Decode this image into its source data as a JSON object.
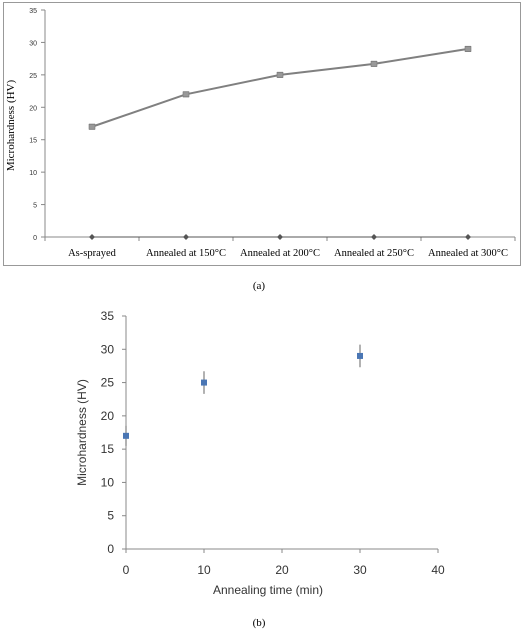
{
  "chart_data": [
    {
      "type": "line",
      "categories": [
        "As-sprayed",
        "Annealed at 150°C",
        "Annealed at 200°C",
        "Annealed at 250°C",
        "Annealed at 300°C"
      ],
      "series": [
        {
          "values": [
            17,
            22,
            25,
            26.7,
            29
          ],
          "color": "#808080"
        },
        {
          "values": [
            0,
            0,
            0,
            0,
            0
          ],
          "color": "#555555"
        }
      ],
      "ylabel": "Microhardness (HV)",
      "ylim": [
        0,
        35
      ],
      "yticks": [
        0,
        5,
        10,
        15,
        20,
        25,
        30,
        35
      ],
      "ytick_labels": [
        "0",
        "5",
        "10",
        "15",
        "20",
        "25",
        "30",
        "35"
      ],
      "grid": false,
      "caption": "(a)"
    },
    {
      "type": "scatter",
      "x": [
        0,
        10,
        30
      ],
      "y": [
        17,
        25,
        29
      ],
      "yerr": [
        1.5,
        1.7,
        1.7
      ],
      "xlabel": "Annealing time (min)",
      "ylabel": "Microhardness (HV)",
      "xlim": [
        0,
        40
      ],
      "ylim": [
        0,
        35
      ],
      "xticks": [
        0,
        10,
        20,
        30,
        40
      ],
      "xtick_labels": [
        "0",
        "10",
        "20",
        "30",
        "40"
      ],
      "yticks": [
        0,
        5,
        10,
        15,
        20,
        25,
        30,
        35
      ],
      "ytick_labels": [
        "0",
        "5",
        "10",
        "15",
        "20",
        "25",
        "30",
        "35"
      ],
      "marker_color": "#4A76B4",
      "grid": false,
      "caption": "(b)"
    }
  ]
}
